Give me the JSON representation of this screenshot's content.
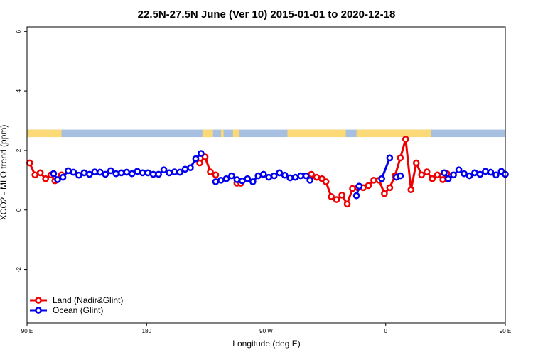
{
  "chart_data": {
    "type": "line",
    "title": "22.5N-27.5N June (Ver 10)   2015-01-01 to 2020-12-18",
    "xlabel": "Longitude (deg E)",
    "ylabel": "XCO2 - MLO trend (ppm)",
    "xlim": [
      90,
      450
    ],
    "ylim": [
      -3.8,
      6.15
    ],
    "x_ticks": [
      {
        "value": 90,
        "label": "90 E"
      },
      {
        "value": 180,
        "label": "180"
      },
      {
        "value": 270,
        "label": "90 W"
      },
      {
        "value": 360,
        "label": "0"
      },
      {
        "value": 450,
        "label": "90 E"
      },
      {
        "value": 540,
        "label": "180"
      }
    ],
    "x_ticks_note": "",
    "y_ticks": [
      {
        "value": -2,
        "label": "-2"
      },
      {
        "value": 0,
        "label": "0"
      },
      {
        "value": 2,
        "label": "2"
      },
      {
        "value": 4,
        "label": "4"
      },
      {
        "value": 6,
        "label": "6"
      }
    ],
    "grid": false,
    "legend_position": "bottom-left",
    "land_band": {
      "y_range": [
        2.45,
        2.7
      ],
      "ocean_color": "#a7bfe0",
      "land_color": "#fbd977",
      "land_segments": [
        [
          90,
          116
        ],
        [
          222,
          230
        ],
        [
          236,
          238
        ],
        [
          245,
          250
        ],
        [
          286,
          330
        ],
        [
          338,
          394
        ]
      ]
    },
    "series": [
      {
        "name": "Land (Nadir&Glint)",
        "color": "#ee0000",
        "segments": [
          [
            [
              92,
              1.58
            ],
            [
              96,
              1.18
            ],
            [
              100,
              1.25
            ],
            [
              104,
              1.05
            ],
            [
              108,
              1.18
            ],
            [
              111,
              0.98
            ],
            [
              116,
              1.18
            ]
          ],
          [
            [
              220,
              1.58
            ],
            [
              224,
              1.78
            ],
            [
              228,
              1.28
            ],
            [
              232,
              1.18
            ]
          ],
          [
            [
              248,
              0.9
            ],
            [
              251,
              0.9
            ]
          ],
          [
            [
              304,
              1.2
            ],
            [
              308,
              1.1
            ],
            [
              312,
              1.05
            ],
            [
              315,
              0.95
            ],
            [
              319,
              0.45
            ],
            [
              323,
              0.35
            ],
            [
              327,
              0.5
            ],
            [
              331,
              0.2
            ],
            [
              335,
              0.72
            ],
            [
              339,
              0.75
            ],
            [
              343,
              0.75
            ],
            [
              347,
              0.82
            ],
            [
              351,
              1.0
            ],
            [
              355,
              1.0
            ],
            [
              359,
              0.55
            ],
            [
              363,
              0.75
            ],
            [
              367,
              1.15
            ],
            [
              371,
              1.75
            ],
            [
              375,
              2.38
            ],
            [
              379,
              0.68
            ],
            [
              383,
              1.58
            ],
            [
              387,
              1.18
            ],
            [
              391,
              1.28
            ],
            [
              395,
              1.05
            ],
            [
              399,
              1.18
            ],
            [
              403,
              1.02
            ],
            [
              406,
              1.22
            ]
          ]
        ]
      },
      {
        "name": "Ocean (Glint)",
        "color": "#0000ee",
        "segments": [
          [
            [
              110,
              1.22
            ],
            [
              113,
              1.02
            ],
            [
              117,
              1.1
            ],
            [
              121,
              1.32
            ],
            [
              125,
              1.27
            ],
            [
              129,
              1.17
            ],
            [
              133,
              1.25
            ],
            [
              137,
              1.2
            ],
            [
              141,
              1.28
            ],
            [
              145,
              1.27
            ],
            [
              149,
              1.2
            ],
            [
              153,
              1.32
            ],
            [
              157,
              1.22
            ],
            [
              161,
              1.25
            ],
            [
              165,
              1.27
            ],
            [
              169,
              1.22
            ],
            [
              173,
              1.3
            ],
            [
              177,
              1.25
            ],
            [
              181,
              1.25
            ],
            [
              185,
              1.2
            ],
            [
              189,
              1.2
            ],
            [
              193,
              1.35
            ],
            [
              197,
              1.25
            ],
            [
              201,
              1.28
            ],
            [
              205,
              1.27
            ],
            [
              209,
              1.37
            ],
            [
              213,
              1.42
            ],
            [
              217,
              1.72
            ],
            [
              221,
              1.9
            ]
          ],
          [
            [
              232,
              0.95
            ],
            [
              236,
              1.0
            ],
            [
              240,
              1.05
            ],
            [
              244,
              1.15
            ],
            [
              248,
              1.02
            ]
          ],
          [
            [
              252,
              0.98
            ],
            [
              256,
              1.05
            ],
            [
              260,
              0.95
            ],
            [
              264,
              1.15
            ],
            [
              268,
              1.2
            ],
            [
              272,
              1.1
            ],
            [
              276,
              1.15
            ],
            [
              280,
              1.25
            ],
            [
              284,
              1.17
            ],
            [
              288,
              1.08
            ],
            [
              292,
              1.1
            ],
            [
              296,
              1.15
            ],
            [
              300,
              1.15
            ],
            [
              303,
              1.0
            ]
          ],
          [
            [
              338,
              0.48
            ],
            [
              340,
              0.8
            ]
          ],
          [
            [
              357,
              1.05
            ],
            [
              363,
              1.75
            ]
          ],
          [
            [
              368,
              1.1
            ],
            [
              371,
              1.15
            ]
          ],
          [
            [
              404,
              1.25
            ],
            [
              407,
              1.05
            ],
            [
              411,
              1.18
            ],
            [
              415,
              1.35
            ],
            [
              419,
              1.22
            ],
            [
              423,
              1.15
            ],
            [
              427,
              1.25
            ],
            [
              431,
              1.2
            ],
            [
              435,
              1.3
            ],
            [
              439,
              1.27
            ],
            [
              443,
              1.18
            ],
            [
              447,
              1.3
            ],
            [
              450,
              1.2
            ]
          ]
        ]
      }
    ]
  }
}
